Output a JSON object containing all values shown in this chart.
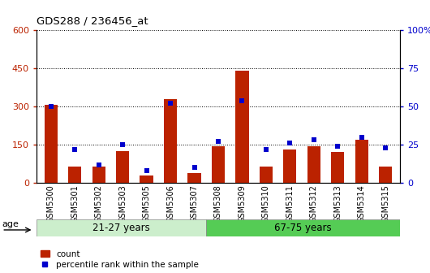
{
  "title": "GDS288 / 236456_at",
  "categories": [
    "GSM5300",
    "GSM5301",
    "GSM5302",
    "GSM5303",
    "GSM5305",
    "GSM5306",
    "GSM5307",
    "GSM5308",
    "GSM5309",
    "GSM5310",
    "GSM5311",
    "GSM5312",
    "GSM5313",
    "GSM5314",
    "GSM5315"
  ],
  "count_values": [
    305,
    65,
    65,
    125,
    30,
    330,
    40,
    145,
    440,
    65,
    130,
    145,
    120,
    170,
    65
  ],
  "percentile_values": [
    50,
    22,
    12,
    25,
    8,
    52,
    10,
    27,
    54,
    22,
    26,
    28,
    24,
    30,
    23
  ],
  "group1_label": "21-27 years",
  "group2_label": "67-75 years",
  "n_group1": 7,
  "n_group2": 8,
  "age_label": "age",
  "ylim_left": [
    0,
    600
  ],
  "ylim_right": [
    0,
    100
  ],
  "yticks_left": [
    0,
    150,
    300,
    450,
    600
  ],
  "yticks_right": [
    0,
    25,
    50,
    75,
    100
  ],
  "bar_color": "#bb2200",
  "dot_color": "#0000cc",
  "group1_color": "#cceecc",
  "group2_color": "#55cc55",
  "xtick_bg_color": "#cccccc",
  "plot_bg": "#ffffff",
  "legend_items": [
    "count",
    "percentile rank within the sample"
  ],
  "bar_width": 0.55
}
